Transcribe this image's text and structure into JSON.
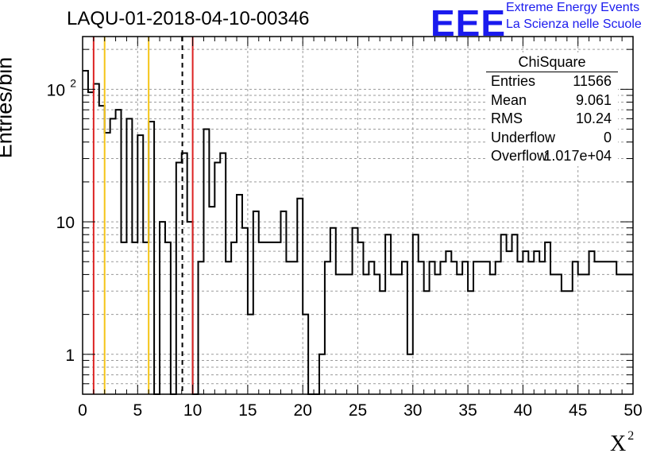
{
  "header": {
    "title": "LAQU-01-2018-04-10-00346",
    "logo_text": "EEE",
    "logo_line1": "Extreme Energy Events",
    "logo_line2": "La Scienza nelle Scuole"
  },
  "stats_box": {
    "name": "ChiSquare",
    "entries": [
      {
        "label": "Entries",
        "value": "11566"
      },
      {
        "label": "Mean",
        "value": "9.061"
      },
      {
        "label": "RMS",
        "value": "10.24"
      },
      {
        "label": "Underflow",
        "value": "0"
      },
      {
        "label": "Overflow",
        "value": "1.017e+04"
      }
    ]
  },
  "chart_data": {
    "type": "histogram",
    "xlabel": "X",
    "xlabel_sup": "2",
    "ylabel": "Entries/bin",
    "xlim": [
      0,
      50
    ],
    "ylim": [
      0.5,
      250
    ],
    "yscale": "log",
    "grid": true,
    "bin_width": 0.5,
    "x_ticks": [
      0,
      5,
      10,
      15,
      20,
      25,
      30,
      35,
      40,
      45,
      50
    ],
    "x_tick_labels": [
      "0",
      "5",
      "10",
      "15",
      "20",
      "25",
      "30",
      "35",
      "40",
      "45",
      "50"
    ],
    "y_tick_labels": [
      {
        "value": 1,
        "label": "1"
      },
      {
        "value": 10,
        "label": "10"
      },
      {
        "value": 100,
        "label": "10",
        "sup": "2"
      }
    ],
    "values": [
      138,
      95,
      110,
      75,
      47,
      60,
      70,
      7,
      60,
      7,
      45,
      7,
      57,
      0,
      10,
      7,
      0,
      28,
      33,
      10,
      0,
      5,
      50,
      13,
      28,
      33,
      5,
      7,
      16,
      9,
      2,
      12,
      7,
      7,
      7,
      7,
      12,
      5,
      5,
      15,
      2,
      0,
      0,
      1,
      5,
      9,
      4,
      4,
      4,
      9,
      7,
      4,
      5,
      4,
      3,
      8,
      4,
      4,
      5,
      1,
      8,
      5,
      3,
      5,
      4,
      5,
      6,
      5,
      4,
      5,
      3,
      5,
      5,
      5,
      4,
      5,
      8,
      6,
      8,
      5,
      6,
      5,
      6,
      5,
      7,
      4,
      4,
      3,
      3,
      5,
      4,
      4,
      6,
      5,
      5,
      5,
      5,
      4,
      4,
      4
    ],
    "vertical_lines": [
      {
        "x": 1,
        "color": "#dd2222",
        "style": "solid"
      },
      {
        "x": 2,
        "color": "#f5c518",
        "style": "solid"
      },
      {
        "x": 6,
        "color": "#f5c518",
        "style": "solid"
      },
      {
        "x": 9.061,
        "color": "#000000",
        "style": "dashed"
      },
      {
        "x": 10,
        "color": "#dd2222",
        "style": "solid"
      }
    ]
  }
}
